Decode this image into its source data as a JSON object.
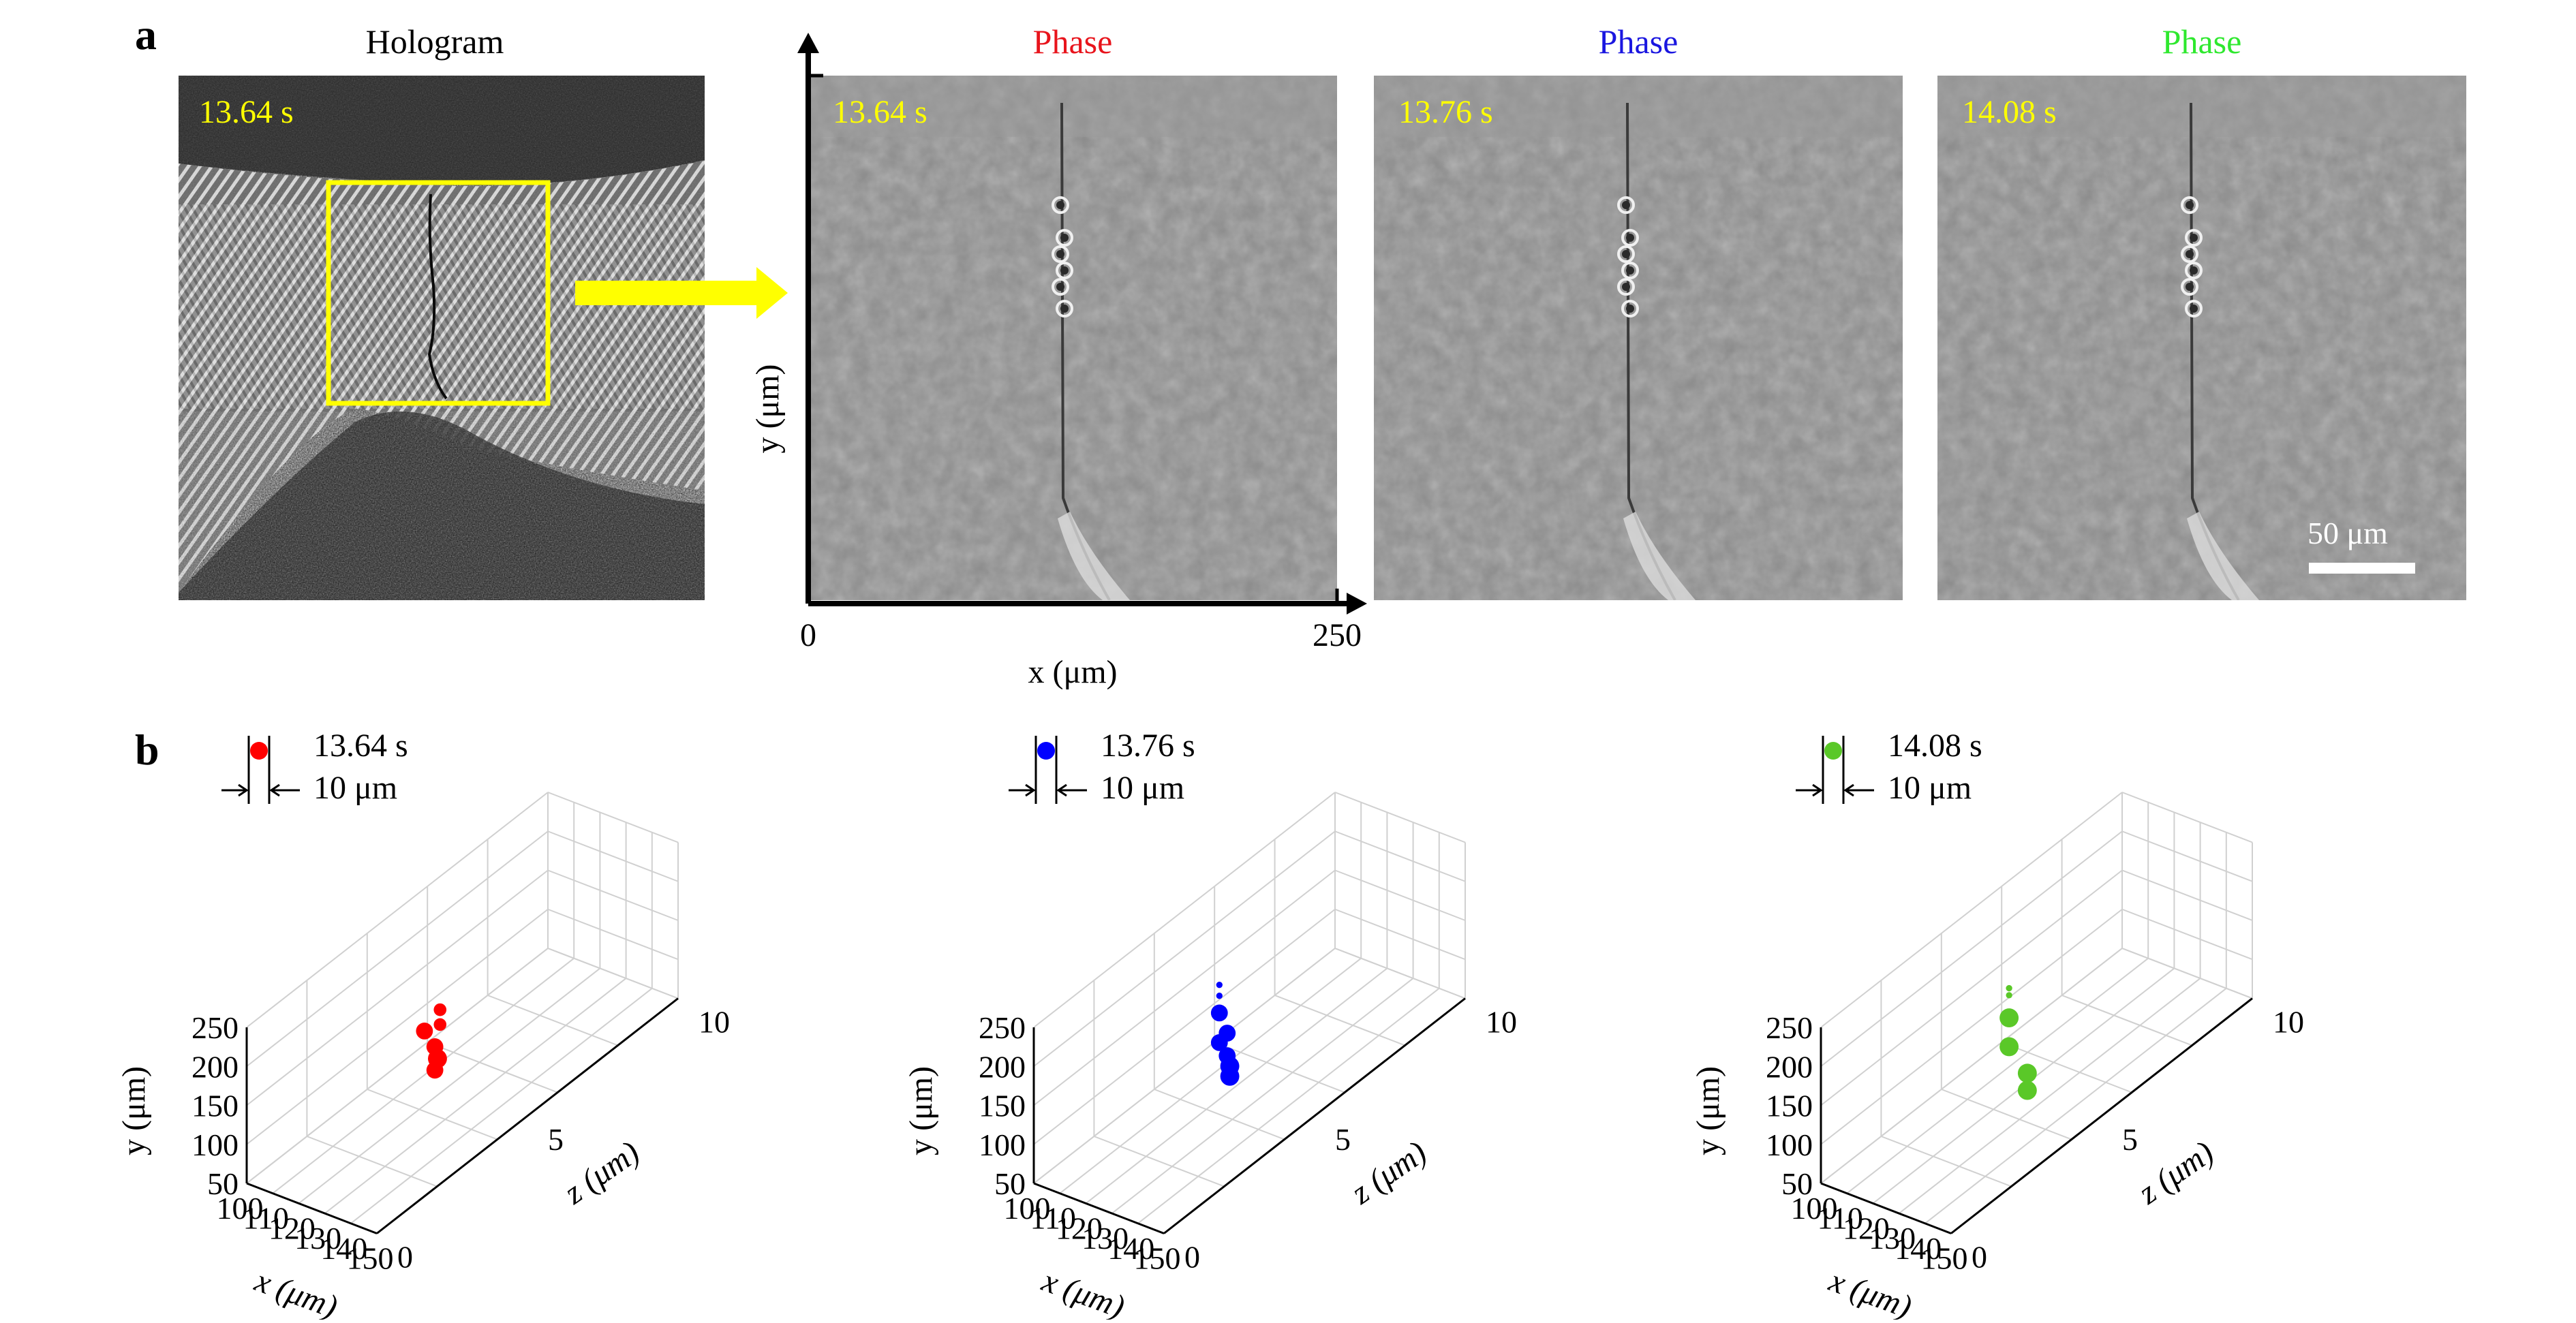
{
  "panel_a": {
    "letter": "a",
    "hologram": {
      "title": "Hologram",
      "time": "13.64 s"
    },
    "phase_panels": [
      {
        "title": "Phase",
        "title_color": "#e8141c",
        "time": "13.64 s"
      },
      {
        "title": "Phase",
        "title_color": "#1a16e0",
        "time": "13.76 s"
      },
      {
        "title": "Phase",
        "title_color": "#2ee82e",
        "time": "14.08 s"
      }
    ],
    "time_label_color": "#ffff00",
    "roi_color": "#ffff00",
    "arrow_color": "#ffff00",
    "axes": {
      "ylabel": "y (μm)",
      "xlabel": "x (μm)",
      "x_min_label": "0",
      "x_max_label": "250"
    },
    "scalebar": {
      "label": "50 μm",
      "length_um": 50
    }
  },
  "panel_b": {
    "letter": "b",
    "size_legend_label": "10 μm"
  },
  "chart_data": [
    {
      "type": "scatter",
      "time": "13.64 s",
      "color": "#ff0000",
      "xlabel": "x (μm)",
      "ylabel": "y (μm)",
      "zlabel": "z (μm)",
      "xlim": [
        100,
        150
      ],
      "ylim": [
        50,
        250
      ],
      "zlim": [
        0,
        10
      ],
      "xticks": [
        "100",
        "110",
        "120",
        "130",
        "140",
        "150"
      ],
      "yticks": [
        "50",
        "100",
        "150",
        "200",
        "250"
      ],
      "zticks": [
        "0",
        "5",
        "10"
      ],
      "points": [
        {
          "x": 128,
          "y": 188,
          "z": 4,
          "d": 6
        },
        {
          "x": 128,
          "y": 169,
          "z": 4,
          "d": 6
        },
        {
          "x": 122,
          "y": 153,
          "z": 4,
          "d": 8
        },
        {
          "x": 126,
          "y": 138,
          "z": 4,
          "d": 8
        },
        {
          "x": 127,
          "y": 124,
          "z": 4,
          "d": 9
        },
        {
          "x": 126,
          "y": 108,
          "z": 4,
          "d": 8
        }
      ]
    },
    {
      "type": "scatter",
      "time": "13.76 s",
      "color": "#0000ff",
      "xlabel": "x (μm)",
      "ylabel": "y (μm)",
      "zlabel": "z (μm)",
      "xlim": [
        100,
        150
      ],
      "ylim": [
        50,
        250
      ],
      "zlim": [
        0,
        10
      ],
      "xticks": [
        "100",
        "110",
        "120",
        "130",
        "140",
        "150"
      ],
      "yticks": [
        "50",
        "100",
        "150",
        "200",
        "250"
      ],
      "zticks": [
        "0",
        "5",
        "10"
      ],
      "points": [
        {
          "x": 125,
          "y": 216,
          "z": 4,
          "d": 3
        },
        {
          "x": 125,
          "y": 202,
          "z": 4,
          "d": 3
        },
        {
          "x": 125,
          "y": 180,
          "z": 4,
          "d": 8
        },
        {
          "x": 128,
          "y": 158,
          "z": 4,
          "d": 8
        },
        {
          "x": 125,
          "y": 142,
          "z": 4,
          "d": 8
        },
        {
          "x": 128,
          "y": 129,
          "z": 4,
          "d": 8
        },
        {
          "x": 129,
          "y": 117,
          "z": 4,
          "d": 9
        },
        {
          "x": 129,
          "y": 104,
          "z": 4,
          "d": 9
        }
      ]
    },
    {
      "type": "scatter",
      "time": "14.08 s",
      "color": "#5ac828",
      "xlabel": "x (μm)",
      "ylabel": "y (μm)",
      "zlabel": "z (μm)",
      "xlim": [
        100,
        150
      ],
      "ylim": [
        50,
        250
      ],
      "zlim": [
        0,
        10
      ],
      "xticks": [
        "100",
        "110",
        "120",
        "130",
        "140",
        "150"
      ],
      "yticks": [
        "50",
        "100",
        "150",
        "200",
        "250"
      ],
      "zticks": [
        "0",
        "5",
        "10"
      ],
      "points": [
        {
          "x": 126,
          "y": 213,
          "z": 4,
          "d": 3
        },
        {
          "x": 126,
          "y": 204,
          "z": 4,
          "d": 3
        },
        {
          "x": 126,
          "y": 175,
          "z": 4,
          "d": 9
        },
        {
          "x": 126,
          "y": 138,
          "z": 4,
          "d": 9
        },
        {
          "x": 133,
          "y": 113,
          "z": 4,
          "d": 9
        },
        {
          "x": 133,
          "y": 91,
          "z": 4,
          "d": 9
        }
      ]
    }
  ]
}
